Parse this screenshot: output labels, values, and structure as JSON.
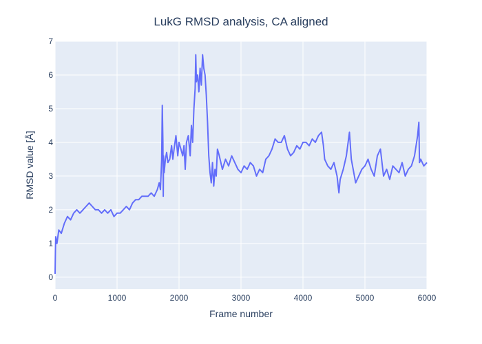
{
  "chart_data": {
    "type": "line",
    "title": "LukG RMSD analysis, CA aligned",
    "xlabel": "Frame number",
    "ylabel": "RMSD value [Å]",
    "xlim": [
      0,
      6000
    ],
    "ylim": [
      -0.35,
      7
    ],
    "x_ticks": [
      "0",
      "1000",
      "2000",
      "3000",
      "4000",
      "5000",
      "6000"
    ],
    "y_ticks": [
      "0",
      "1",
      "2",
      "3",
      "4",
      "5",
      "6",
      "7"
    ],
    "grid": true,
    "legend": "none",
    "colors": {
      "line": "#636efa",
      "plot_bg": "#e5ecf6",
      "grid": "#ffffff",
      "text": "#2a3f5f"
    },
    "series": [
      {
        "x": [
          0,
          5,
          10,
          30,
          60,
          100,
          150,
          200,
          250,
          300,
          350,
          400,
          450,
          500,
          550,
          600,
          650,
          700,
          750,
          800,
          850,
          900,
          950,
          1000,
          1050,
          1100,
          1150,
          1200,
          1250,
          1300,
          1350,
          1400,
          1450,
          1500,
          1550,
          1600,
          1650,
          1680,
          1700,
          1720,
          1730,
          1740,
          1745,
          1750,
          1760,
          1780,
          1800,
          1820,
          1850,
          1880,
          1900,
          1920,
          1950,
          1980,
          2000,
          2030,
          2060,
          2080,
          2100,
          2120,
          2150,
          2180,
          2200,
          2220,
          2240,
          2260,
          2270,
          2280,
          2300,
          2320,
          2340,
          2360,
          2380,
          2400,
          2420,
          2440,
          2460,
          2480,
          2500,
          2520,
          2540,
          2560,
          2580,
          2600,
          2620,
          2650,
          2700,
          2750,
          2800,
          2850,
          2900,
          2950,
          3000,
          3050,
          3100,
          3150,
          3200,
          3250,
          3300,
          3350,
          3400,
          3450,
          3500,
          3550,
          3600,
          3650,
          3700,
          3750,
          3800,
          3850,
          3900,
          3950,
          4000,
          4050,
          4100,
          4150,
          4200,
          4250,
          4300,
          4330,
          4350,
          4400,
          4450,
          4500,
          4550,
          4580,
          4600,
          4650,
          4700,
          4750,
          4780,
          4800,
          4850,
          4900,
          4950,
          5000,
          5050,
          5100,
          5150,
          5200,
          5250,
          5300,
          5350,
          5400,
          5450,
          5500,
          5550,
          5600,
          5650,
          5700,
          5750,
          5800,
          5850,
          5870,
          5880,
          5900,
          5950,
          6000
        ],
        "y": [
          0.1,
          0.8,
          1.2,
          1.0,
          1.4,
          1.3,
          1.6,
          1.8,
          1.7,
          1.9,
          2.0,
          1.9,
          2.0,
          2.1,
          2.2,
          2.1,
          2.0,
          2.0,
          1.9,
          2.0,
          1.9,
          2.0,
          1.8,
          1.9,
          1.9,
          2.0,
          2.1,
          2.0,
          2.2,
          2.3,
          2.3,
          2.4,
          2.4,
          2.4,
          2.5,
          2.4,
          2.6,
          2.8,
          2.6,
          3.5,
          5.1,
          4.0,
          2.4,
          3.6,
          3.1,
          3.5,
          3.7,
          3.4,
          3.5,
          3.9,
          3.5,
          3.8,
          4.2,
          3.6,
          4.0,
          3.8,
          3.6,
          3.9,
          3.2,
          4.0,
          4.2,
          3.6,
          4.5,
          4.0,
          5.0,
          5.6,
          6.6,
          5.8,
          6.0,
          5.5,
          6.2,
          5.7,
          6.6,
          6.2,
          6.0,
          5.4,
          4.6,
          3.6,
          3.1,
          2.8,
          3.4,
          2.7,
          3.2,
          3.0,
          3.8,
          3.6,
          3.2,
          3.5,
          3.3,
          3.6,
          3.4,
          3.2,
          3.1,
          3.3,
          3.2,
          3.4,
          3.3,
          3.0,
          3.2,
          3.1,
          3.5,
          3.6,
          3.8,
          4.1,
          4.0,
          4.0,
          4.2,
          3.8,
          3.6,
          3.7,
          3.9,
          3.8,
          4.0,
          4.0,
          3.9,
          4.1,
          4.0,
          4.2,
          4.3,
          3.9,
          3.5,
          3.3,
          3.2,
          3.4,
          3.0,
          2.5,
          2.9,
          3.2,
          3.6,
          4.3,
          3.5,
          3.3,
          2.8,
          3.0,
          3.2,
          3.3,
          3.5,
          3.2,
          3.0,
          3.6,
          3.8,
          3.0,
          3.2,
          2.9,
          3.3,
          3.2,
          3.1,
          3.4,
          3.0,
          3.2,
          3.3,
          3.6,
          4.2,
          4.6,
          3.4,
          3.5,
          3.3,
          3.4
        ]
      }
    ]
  }
}
